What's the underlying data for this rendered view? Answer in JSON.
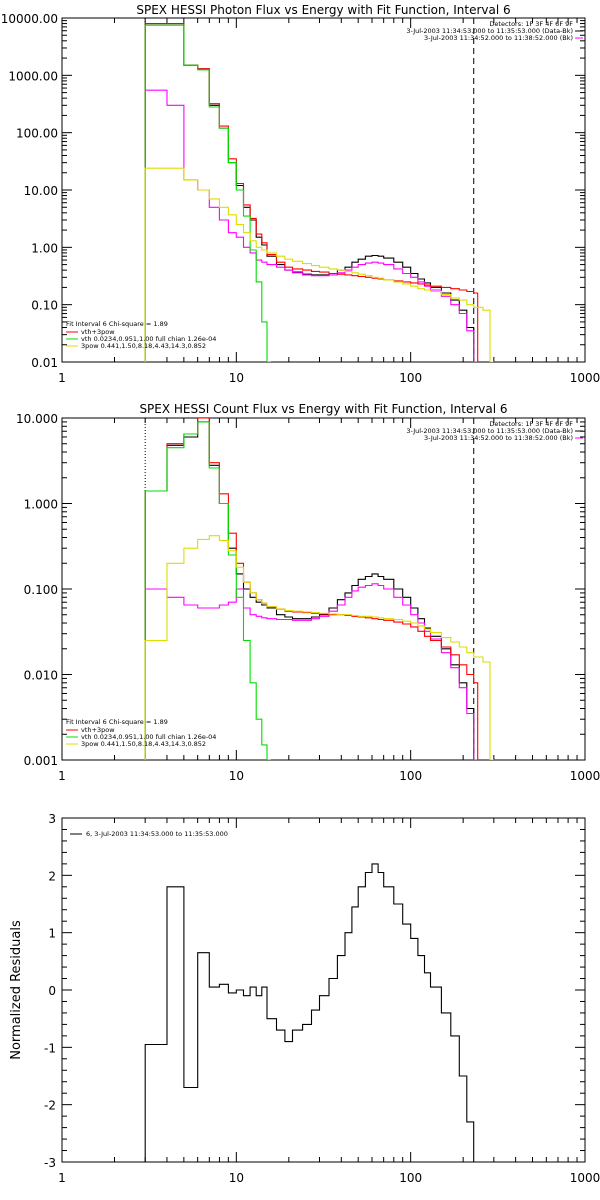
{
  "chart_data": [
    {
      "type": "line",
      "title": "SPEX HESSI Photon Flux vs Energy with Fit Function, Interval 6",
      "xlabel": "",
      "ylabel": "",
      "xscale": "log",
      "yscale": "log",
      "xlim": [
        1,
        1000
      ],
      "ylim": [
        0.01,
        10000
      ],
      "grid": false,
      "x_tick_labels": [
        "1",
        "10",
        "100",
        "1000"
      ],
      "y_tick_labels": [
        "0.01",
        "0.10",
        "1.00",
        "10.00",
        "100.00",
        "1000.00",
        "10000.00"
      ],
      "header_lines": [
        "Detectors: 1F 3F 4F 6F 9F",
        "3-Jul-2003 11:34:53.000 to 11:35:53.000 (Data-Bk)",
        "3-Jul-2003 11:34:52.000 to 11:38:52.000 (Bk)"
      ],
      "legend_title": "Fit Interval 6   Chi-square = 1.89",
      "legend_position": "bottom-left",
      "legend": [
        {
          "label": "vth+3pow",
          "color": "#ff0000"
        },
        {
          "label": "vth 0.0234,0.951,1.00  full chian 1.26e-04",
          "color": "#00dd00"
        },
        {
          "label": "3pow 0.441,1.50,8.18,4.43,14.3,0.852",
          "color": "#dddd00"
        }
      ],
      "vlines": [
        {
          "x": 3.0,
          "style": "dotted",
          "color": "#000000"
        },
        {
          "x": 230,
          "style": "dashed",
          "color": "#000000"
        }
      ],
      "series": [
        {
          "name": "Data-Bk",
          "color": "#000000",
          "step": true,
          "x": [
            3,
            4,
            5,
            6,
            7,
            8,
            9,
            10,
            11,
            12,
            13,
            14,
            15,
            17,
            19,
            21,
            24,
            27,
            30,
            34,
            38,
            42,
            46,
            50,
            55,
            60,
            65,
            70,
            80,
            90,
            100,
            110,
            120,
            130,
            150,
            170,
            190,
            210,
            230
          ],
          "y": [
            8000,
            8000,
            1500,
            1300,
            300,
            120,
            30,
            12,
            5,
            3,
            1.5,
            1.1,
            0.7,
            0.5,
            0.4,
            0.37,
            0.34,
            0.33,
            0.33,
            0.35,
            0.4,
            0.45,
            0.55,
            0.62,
            0.7,
            0.72,
            0.7,
            0.65,
            0.55,
            0.45,
            0.35,
            0.28,
            0.24,
            0.2,
            0.16,
            0.12,
            0.08,
            0.04,
            0.01
          ]
        },
        {
          "name": "Bk",
          "color": "#ff00ff",
          "step": true,
          "x": [
            3,
            4,
            5,
            6,
            7,
            8,
            9,
            10,
            11,
            12,
            13,
            14,
            15,
            17,
            19,
            21,
            24,
            27,
            30,
            34,
            38,
            42,
            46,
            50,
            55,
            60,
            65,
            70,
            80,
            90,
            100,
            110,
            120,
            130,
            150,
            170,
            190,
            210,
            230
          ],
          "y": [
            550,
            300,
            15,
            10,
            5,
            3,
            1.8,
            1.5,
            1.0,
            0.8,
            0.6,
            0.55,
            0.5,
            0.45,
            0.4,
            0.36,
            0.33,
            0.32,
            0.32,
            0.33,
            0.36,
            0.4,
            0.45,
            0.5,
            0.53,
            0.55,
            0.53,
            0.5,
            0.42,
            0.35,
            0.3,
            0.25,
            0.21,
            0.18,
            0.14,
            0.1,
            0.07,
            0.035,
            0.01
          ]
        },
        {
          "name": "vth+3pow",
          "color": "#ff0000",
          "step": true,
          "x": [
            3,
            4,
            5,
            6,
            7,
            8,
            9,
            10,
            11,
            12,
            13,
            14,
            15,
            17,
            19,
            21,
            24,
            27,
            30,
            34,
            38,
            42,
            46,
            50,
            55,
            60,
            65,
            70,
            80,
            90,
            100,
            110,
            120,
            130,
            150,
            170,
            190,
            210,
            230
          ],
          "y": [
            8000,
            8000,
            1500,
            1300,
            320,
            130,
            35,
            13,
            5.5,
            3.2,
            1.7,
            1.2,
            0.75,
            0.55,
            0.45,
            0.42,
            0.4,
            0.38,
            0.37,
            0.35,
            0.34,
            0.33,
            0.32,
            0.31,
            0.3,
            0.29,
            0.28,
            0.27,
            0.26,
            0.25,
            0.24,
            0.23,
            0.22,
            0.21,
            0.2,
            0.19,
            0.18,
            0.17,
            0.16
          ]
        },
        {
          "name": "vth",
          "color": "#00dd00",
          "step": true,
          "x": [
            3,
            4,
            5,
            6,
            7,
            8,
            9,
            10,
            11,
            12,
            13,
            14,
            15
          ],
          "y": [
            7500,
            7500,
            1500,
            1250,
            280,
            120,
            30,
            10,
            3.5,
            0.9,
            0.25,
            0.05,
            0.01
          ]
        },
        {
          "name": "3pow",
          "color": "#dddd00",
          "step": true,
          "x": [
            3,
            4,
            5,
            6,
            7,
            8,
            9,
            10,
            11,
            12,
            13,
            14,
            15,
            17,
            19,
            21,
            24,
            27,
            30,
            34,
            38,
            42,
            46,
            50,
            55,
            60,
            65,
            70,
            80,
            90,
            100,
            110,
            120,
            130,
            150,
            170,
            190,
            210,
            230,
            260,
            285
          ],
          "y": [
            24,
            24,
            15,
            10,
            7,
            5,
            3.7,
            2.5,
            1.8,
            1.3,
            1.0,
            0.9,
            0.8,
            0.7,
            0.62,
            0.57,
            0.52,
            0.48,
            0.45,
            0.42,
            0.4,
            0.38,
            0.36,
            0.34,
            0.32,
            0.3,
            0.29,
            0.27,
            0.25,
            0.23,
            0.21,
            0.19,
            0.18,
            0.17,
            0.15,
            0.13,
            0.12,
            0.1,
            0.09,
            0.08,
            0.01
          ]
        }
      ]
    },
    {
      "type": "line",
      "title": "SPEX HESSI Count Flux vs Energy with Fit Function, Interval 6",
      "xlabel": "",
      "ylabel": "",
      "xscale": "log",
      "yscale": "log",
      "xlim": [
        1,
        1000
      ],
      "ylim": [
        0.001,
        10
      ],
      "grid": false,
      "x_tick_labels": [
        "1",
        "10",
        "100",
        "1000"
      ],
      "y_tick_labels": [
        "0.001",
        "0.010",
        "0.100",
        "1.000",
        "10.000"
      ],
      "header_lines": [
        "Detectors: 1F 3F 4F 6F 9F",
        "3-Jul-2003 11:34:53.000 to 11:35:53.000 (Data-Bk)",
        "3-Jul-2003 11:34:52.000 to 11:38:52.000 (Bk)"
      ],
      "legend_title": "Fit Interval 6   Chi-square = 1.89",
      "legend_position": "bottom-left",
      "legend": [
        {
          "label": "vth+3pow",
          "color": "#ff0000"
        },
        {
          "label": "vth 0.0234,0.951,1.00  full chian 1.26e-04",
          "color": "#00dd00"
        },
        {
          "label": "3pow 0.441,1.50,8.18,4.43,14.3,0.852",
          "color": "#dddd00"
        }
      ],
      "vlines": [
        {
          "x": 3.0,
          "style": "dotted",
          "color": "#000000"
        },
        {
          "x": 230,
          "style": "dashed",
          "color": "#000000"
        }
      ],
      "series": [
        {
          "name": "Data-Bk",
          "color": "#000000",
          "step": true,
          "x": [
            3,
            4,
            5,
            6,
            7,
            8,
            9,
            10,
            11,
            12,
            13,
            14,
            15,
            17,
            19,
            21,
            24,
            27,
            30,
            34,
            38,
            42,
            46,
            50,
            55,
            60,
            65,
            70,
            80,
            90,
            100,
            110,
            120,
            130,
            150,
            170,
            190,
            210,
            230
          ],
          "y": [
            1.4,
            4.8,
            6,
            9,
            2.8,
            1.0,
            0.3,
            0.15,
            0.1,
            0.08,
            0.07,
            0.065,
            0.06,
            0.05,
            0.047,
            0.045,
            0.045,
            0.047,
            0.05,
            0.06,
            0.075,
            0.09,
            0.11,
            0.13,
            0.14,
            0.15,
            0.14,
            0.13,
            0.1,
            0.08,
            0.06,
            0.045,
            0.035,
            0.028,
            0.02,
            0.013,
            0.008,
            0.004,
            0.001
          ]
        },
        {
          "name": "Bk",
          "color": "#ff00ff",
          "step": true,
          "x": [
            3,
            4,
            5,
            6,
            7,
            8,
            9,
            10,
            11,
            12,
            13,
            14,
            15,
            17,
            19,
            21,
            24,
            27,
            30,
            34,
            38,
            42,
            46,
            50,
            55,
            60,
            65,
            70,
            80,
            90,
            100,
            110,
            120,
            130,
            150,
            170,
            190,
            210,
            230
          ],
          "y": [
            0.1,
            0.08,
            0.065,
            0.06,
            0.06,
            0.065,
            0.07,
            0.1,
            0.06,
            0.05,
            0.048,
            0.046,
            0.045,
            0.044,
            0.044,
            0.043,
            0.043,
            0.045,
            0.048,
            0.055,
            0.065,
            0.08,
            0.095,
            0.105,
            0.11,
            0.115,
            0.11,
            0.1,
            0.08,
            0.065,
            0.05,
            0.04,
            0.032,
            0.026,
            0.018,
            0.012,
            0.007,
            0.0035,
            0.001
          ]
        },
        {
          "name": "vth+3pow",
          "color": "#ff0000",
          "step": true,
          "x": [
            3,
            4,
            5,
            6,
            7,
            8,
            9,
            10,
            11,
            12,
            13,
            14,
            15,
            17,
            19,
            21,
            24,
            27,
            30,
            34,
            38,
            42,
            46,
            50,
            55,
            60,
            65,
            70,
            80,
            90,
            100,
            110,
            120,
            130,
            150,
            170,
            190,
            210,
            230
          ],
          "y": [
            1.4,
            5,
            6.5,
            10,
            3,
            1.3,
            0.45,
            0.2,
            0.12,
            0.09,
            0.075,
            0.068,
            0.062,
            0.058,
            0.055,
            0.054,
            0.053,
            0.052,
            0.051,
            0.05,
            0.05,
            0.049,
            0.048,
            0.047,
            0.046,
            0.045,
            0.044,
            0.043,
            0.041,
            0.039,
            0.036,
            0.032,
            0.028,
            0.025,
            0.021,
            0.017,
            0.013,
            0.01,
            0.008
          ]
        },
        {
          "name": "vth",
          "color": "#00dd00",
          "step": true,
          "x": [
            3,
            4,
            5,
            6,
            7,
            8,
            9,
            10,
            11,
            12,
            13,
            14,
            15
          ],
          "y": [
            1.4,
            4.5,
            6.5,
            9,
            2.6,
            1.0,
            0.25,
            0.08,
            0.025,
            0.008,
            0.003,
            0.0015,
            0.001
          ]
        },
        {
          "name": "3pow",
          "color": "#dddd00",
          "step": true,
          "x": [
            3,
            4,
            5,
            6,
            7,
            8,
            9,
            10,
            11,
            12,
            13,
            14,
            15,
            17,
            19,
            21,
            24,
            27,
            30,
            34,
            38,
            42,
            46,
            50,
            55,
            60,
            65,
            70,
            80,
            90,
            100,
            110,
            120,
            130,
            150,
            170,
            190,
            210,
            230,
            260,
            285
          ],
          "y": [
            0.025,
            0.2,
            0.3,
            0.38,
            0.42,
            0.37,
            0.28,
            0.18,
            0.12,
            0.09,
            0.075,
            0.068,
            0.062,
            0.058,
            0.056,
            0.055,
            0.054,
            0.053,
            0.052,
            0.051,
            0.05,
            0.05,
            0.049,
            0.048,
            0.048,
            0.047,
            0.046,
            0.045,
            0.044,
            0.042,
            0.04,
            0.037,
            0.034,
            0.031,
            0.027,
            0.024,
            0.021,
            0.018,
            0.016,
            0.014,
            0.001
          ]
        }
      ]
    },
    {
      "type": "line",
      "title": "",
      "xlabel": "",
      "ylabel": "Normalized Residuals",
      "xscale": "log",
      "yscale": "linear",
      "xlim": [
        1,
        1000
      ],
      "ylim": [
        -3,
        3
      ],
      "grid": false,
      "x_tick_labels": [
        "1",
        "10",
        "100",
        "1000"
      ],
      "y_tick_labels": [
        "-3",
        "-2",
        "-1",
        "0",
        "1",
        "2",
        "3"
      ],
      "legend_position": "top-left",
      "legend": [
        {
          "label": "6,  3-Jul-2003 11:34:53.000 to 11:35:53.000",
          "color": "#000000"
        }
      ],
      "series": [
        {
          "name": "6,  3-Jul-2003 11:34:53.000 to 11:35:53.000",
          "color": "#000000",
          "step": true,
          "x": [
            3,
            4,
            5,
            6,
            7,
            8,
            9,
            10,
            11,
            12,
            13,
            14,
            15,
            17,
            19,
            21,
            24,
            27,
            30,
            34,
            38,
            42,
            46,
            50,
            55,
            60,
            65,
            70,
            80,
            90,
            100,
            110,
            120,
            130,
            150,
            170,
            190,
            210,
            230
          ],
          "y": [
            -0.95,
            1.8,
            -1.7,
            0.65,
            0.05,
            0.1,
            -0.05,
            0.0,
            -0.1,
            0.05,
            -0.1,
            0.05,
            -0.5,
            -0.7,
            -0.9,
            -0.7,
            -0.6,
            -0.35,
            -0.1,
            0.2,
            0.6,
            1.0,
            1.45,
            1.8,
            2.05,
            2.2,
            2.05,
            1.8,
            1.5,
            1.15,
            0.9,
            0.6,
            0.3,
            0.05,
            -0.4,
            -0.8,
            -1.5,
            -2.3,
            -3.0
          ]
        }
      ]
    }
  ]
}
